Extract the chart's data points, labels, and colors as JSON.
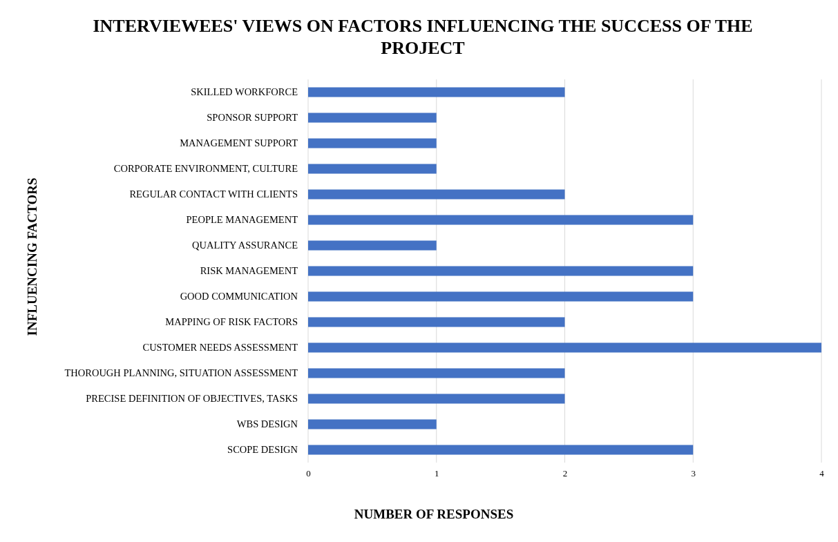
{
  "chart_data": {
    "type": "bar",
    "orientation": "horizontal",
    "title": "INTERVIEWEES' VIEWS ON FACTORS INFLUENCING THE SUCCESS OF THE PROJECT",
    "xlabel": "NUMBER OF RESPONSES",
    "ylabel": "INFLUENCING FACTORS",
    "categories": [
      "SKILLED WORKFORCE",
      "SPONSOR SUPPORT",
      "MANAGEMENT SUPPORT",
      "CORPORATE ENVIRONMENT, CULTURE",
      "REGULAR CONTACT WITH CLIENTS",
      "PEOPLE MANAGEMENT",
      "QUALITY ASSURANCE",
      "RISK MANAGEMENT",
      "GOOD COMMUNICATION",
      "MAPPING OF RISK FACTORS",
      "CUSTOMER NEEDS ASSESSMENT",
      "THOROUGH PLANNING, SITUATION ASSESSMENT",
      "PRECISE DEFINITION OF OBJECTIVES, TASKS",
      "WBS DESIGN",
      "SCOPE DESIGN"
    ],
    "values": [
      2,
      1,
      1,
      1,
      2,
      3,
      1,
      3,
      3,
      2,
      4,
      2,
      2,
      1,
      3
    ],
    "color": "#4472c4",
    "xlim": [
      0,
      4
    ],
    "xticks": [
      0,
      1,
      2,
      3,
      4
    ],
    "grid": "x"
  }
}
